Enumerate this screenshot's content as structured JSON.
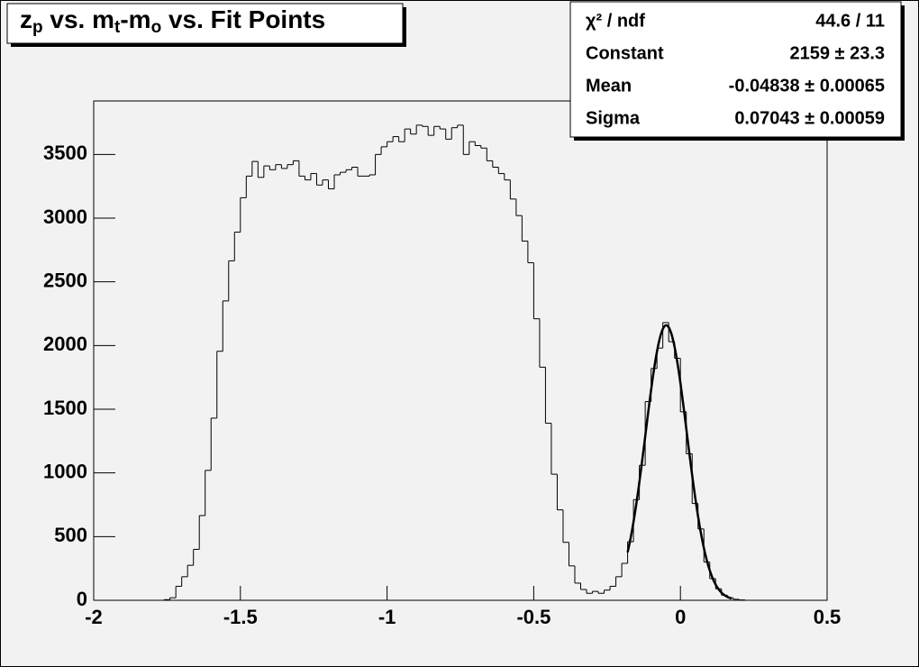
{
  "chart_data": {
    "type": "histogram",
    "title": [
      "z",
      "p",
      " vs. m",
      "t",
      "-m",
      "o",
      " vs. Fit Points"
    ],
    "stats": [
      {
        "label": "χ² / ndf",
        "value": "44.6 / 11"
      },
      {
        "label": "Constant",
        "value": "2159 ± 23.3"
      },
      {
        "label": "Mean",
        "value": "-0.04838 ± 0.00065"
      },
      {
        "label": "Sigma",
        "value": "0.07043 ± 0.00059"
      }
    ],
    "fit": {
      "constant": 2159,
      "mean": -0.04838,
      "sigma": 0.07043,
      "range": [
        -0.18,
        0.175
      ]
    },
    "bins": [
      -2,
      -1.98,
      -1.96,
      -1.94,
      -1.92,
      -1.9,
      -1.88,
      -1.86,
      -1.84,
      -1.82,
      -1.8,
      -1.78,
      -1.76,
      -1.74,
      -1.72,
      -1.7,
      -1.68,
      -1.66,
      -1.64,
      -1.62,
      -1.6,
      -1.58,
      -1.56,
      -1.54,
      -1.52,
      -1.5,
      -1.48,
      -1.46,
      -1.44,
      -1.42,
      -1.4,
      -1.38,
      -1.36,
      -1.34,
      -1.32,
      -1.3,
      -1.28,
      -1.26,
      -1.24,
      -1.22,
      -1.2,
      -1.18,
      -1.16,
      -1.14,
      -1.12,
      -1.1,
      -1.08,
      -1.06,
      -1.04,
      -1.02,
      -1,
      -0.98,
      -0.96,
      -0.94,
      -0.92,
      -0.9,
      -0.88,
      -0.86,
      -0.84,
      -0.82,
      -0.8,
      -0.78,
      -0.76,
      -0.74,
      -0.72,
      -0.7,
      -0.68,
      -0.66,
      -0.64,
      -0.62,
      -0.6,
      -0.58,
      -0.56,
      -0.54,
      -0.52,
      -0.5,
      -0.48,
      -0.46,
      -0.44,
      -0.42,
      -0.4,
      -0.38,
      -0.36,
      -0.34,
      -0.32,
      -0.3,
      -0.28,
      -0.26,
      -0.24,
      -0.22,
      -0.2,
      -0.18,
      -0.16,
      -0.14,
      -0.12,
      -0.1,
      -0.08,
      -0.06,
      -0.04,
      -0.02,
      0,
      0.02,
      0.04,
      0.06,
      0.08,
      0.1,
      0.12,
      0.14,
      0.16,
      0.18,
      0.2,
      0.22,
      0.24,
      0.26,
      0.28,
      0.3,
      0.32,
      0.34,
      0.36,
      0.38,
      0.4,
      0.42,
      0.44,
      0.46,
      0.48,
      0.5
    ],
    "values": [
      0,
      0,
      0,
      0,
      0,
      0,
      0,
      0,
      0,
      0,
      0,
      0,
      5,
      20,
      110,
      185,
      275,
      400,
      665,
      1020,
      1430,
      1955,
      2350,
      2665,
      2890,
      3160,
      3330,
      3445,
      3320,
      3410,
      3380,
      3420,
      3390,
      3420,
      3450,
      3330,
      3300,
      3350,
      3260,
      3300,
      3230,
      3340,
      3360,
      3380,
      3400,
      3330,
      3330,
      3340,
      3500,
      3560,
      3600,
      3640,
      3600,
      3700,
      3660,
      3730,
      3720,
      3650,
      3720,
      3700,
      3620,
      3710,
      3730,
      3500,
      3600,
      3570,
      3550,
      3450,
      3400,
      3350,
      3300,
      3150,
      3020,
      2820,
      2650,
      2210,
      1830,
      1390,
      990,
      710,
      455,
      270,
      135,
      85,
      55,
      70,
      55,
      80,
      110,
      185,
      290,
      460,
      790,
      1060,
      1560,
      1820,
      1980,
      2180,
      2030,
      1900,
      1480,
      1150,
      760,
      560,
      300,
      170,
      90,
      40,
      20,
      8,
      3,
      0,
      0,
      0,
      0,
      0,
      0,
      0,
      0,
      0,
      0,
      0,
      0,
      0,
      0
    ],
    "color": "#000000",
    "xlim": [
      -2,
      0.5
    ],
    "xticks": [
      -2,
      -1.5,
      -1,
      -0.5,
      0,
      0.5
    ],
    "ylim": [
      0,
      3920
    ],
    "yticks": [
      0,
      500,
      1000,
      1500,
      2000,
      2500,
      3000,
      3500
    ]
  }
}
